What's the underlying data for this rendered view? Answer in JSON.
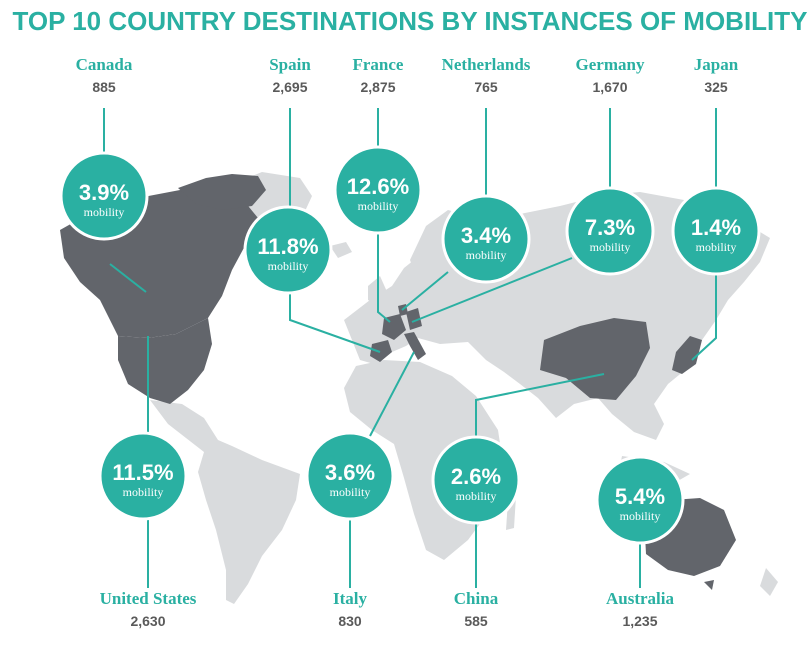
{
  "chart_data": {
    "type": "map-bubble",
    "title": "TOP 10 COUNTRY DESTINATIONS BY INSTANCES OF MOBILITY",
    "value_suffix": "mobility",
    "countries": [
      {
        "name": "Canada",
        "count": "885",
        "share": "3.9%"
      },
      {
        "name": "Spain",
        "count": "2,695",
        "share": "11.8%"
      },
      {
        "name": "France",
        "count": "2,875",
        "share": "12.6%"
      },
      {
        "name": "Netherlands",
        "count": "765",
        "share": "3.4%"
      },
      {
        "name": "Germany",
        "count": "1,670",
        "share": "7.3%"
      },
      {
        "name": "Japan",
        "count": "325",
        "share": "1.4%"
      },
      {
        "name": "United States",
        "count": "2,630",
        "share": "11.5%"
      },
      {
        "name": "Italy",
        "count": "830",
        "share": "3.6%"
      },
      {
        "name": "China",
        "count": "585",
        "share": "2.6%"
      },
      {
        "name": "Australia",
        "count": "1,235",
        "share": "5.4%"
      }
    ]
  },
  "colors": {
    "accent": "#2ab0a2",
    "highlight_land": "#62656b",
    "land": "#d9dbdd",
    "text_numbers": "#5a5a5a"
  }
}
